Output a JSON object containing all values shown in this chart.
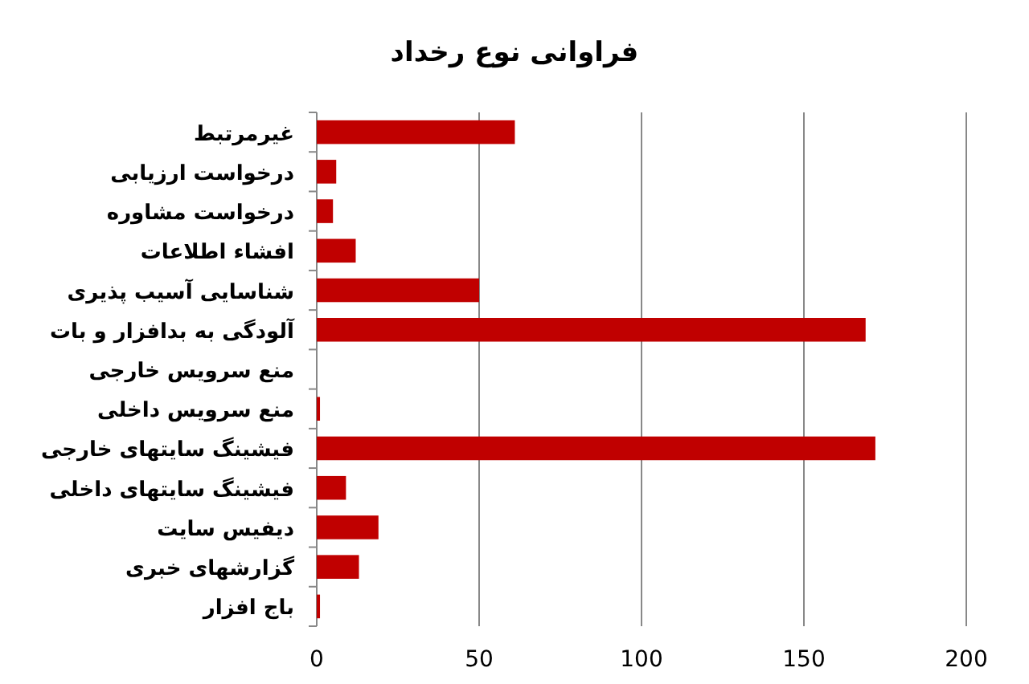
{
  "chart_data": {
    "type": "bar",
    "orientation": "horizontal",
    "title": "فراوانی نوع رخداد",
    "categories": [
      "غیرمرتبط",
      "درخواست ارزیابی",
      "درخواست مشاوره",
      "افشاء اطلاعات",
      "شناسایی آسیب پذیری",
      "آلودگی به بدافزار و بات",
      "منع سرویس خارجی",
      "منع سرویس داخلی",
      "فیشینگ سایتهای خارجی",
      "فیشینگ سایتهای داخلی",
      "دیفیس سایت",
      "گزارشهای خبری",
      "باج افزار"
    ],
    "values": [
      61,
      6,
      5,
      12,
      50,
      169,
      0,
      1,
      172,
      9,
      19,
      13,
      1
    ],
    "color": "#c00000",
    "xlim": [
      0,
      200
    ],
    "xticks": [
      0,
      50,
      100,
      150,
      200
    ],
    "grid": "x"
  }
}
